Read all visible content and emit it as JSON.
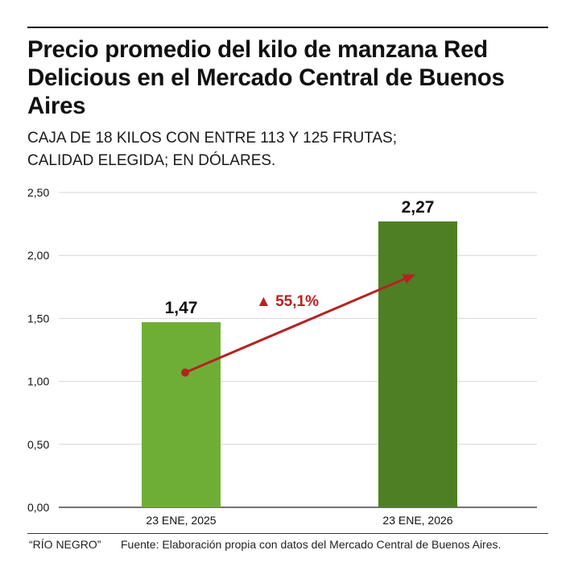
{
  "title": "Precio promedio del kilo de manzana Red Delicious en el Mercado Central de Buenos Aires",
  "subtitle_line1": "CAJA DE 18 KILOS CON ENTRE 113 Y 125 FRUTAS;",
  "subtitle_line2": "CALIDAD ELEGIDA; EN DÓLARES.",
  "footer": {
    "credit": "“RÍO NEGRO”",
    "source": "Fuente: Elaboración propia con datos del Mercado Central de Buenos Aires."
  },
  "chart_data": {
    "type": "bar",
    "categories": [
      "23 ENE, 2025",
      "23 ENE, 2026"
    ],
    "values": [
      1.47,
      2.27
    ],
    "value_labels": [
      "1,47",
      "2,27"
    ],
    "ylim": [
      0,
      2.5
    ],
    "yticks": [
      0,
      0.5,
      1.0,
      1.5,
      2.0,
      2.5
    ],
    "ytick_labels": [
      "0,00",
      "0,50",
      "1,00",
      "1,50",
      "2,00",
      "2,50"
    ],
    "colors": [
      "#6fae36",
      "#4e7f24"
    ],
    "grid": true,
    "annotation": {
      "text": "▲ 55,1%",
      "color": "#b42324",
      "arrow_from": {
        "category": "23 ENE, 2025",
        "value": 1.07
      },
      "arrow_to": {
        "category": "23 ENE, 2026",
        "value": 1.85
      }
    }
  }
}
